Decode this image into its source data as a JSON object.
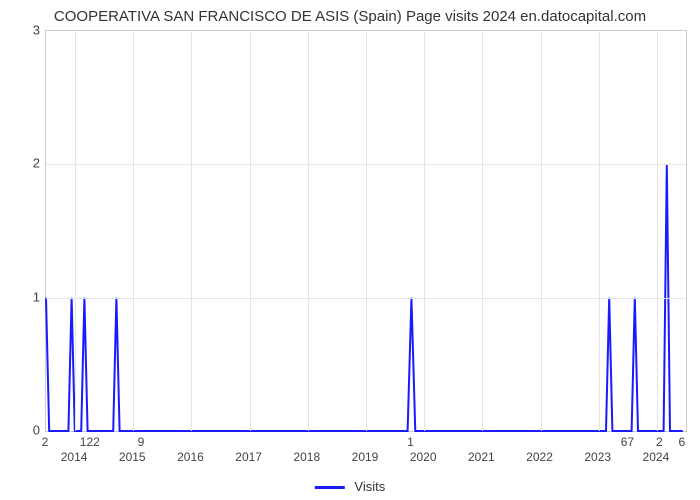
{
  "title": "COOPERATIVA SAN FRANCISCO DE ASIS (Spain) Page visits 2024 en.datocapital.com",
  "chart": {
    "type": "line",
    "background_color": "#ffffff",
    "grid_color": "#e6e6e6",
    "border_color": "#cccccc",
    "series_color": "#1a1aff",
    "line_width": 2,
    "fill_opacity": 0.0,
    "ylabel": "",
    "ylim": [
      0,
      3
    ],
    "ytick_step": 1,
    "yticks": [
      0,
      1,
      2,
      3
    ],
    "x_years": [
      "2014",
      "2015",
      "2016",
      "2017",
      "2018",
      "2019",
      "2020",
      "2021",
      "2022",
      "2023",
      "2024"
    ],
    "value_labels": [
      {
        "x": 0.0,
        "text": "2"
      },
      {
        "x": 7.0,
        "text": "122"
      },
      {
        "x": 15.0,
        "text": "9"
      },
      {
        "x": 57.1,
        "text": "1"
      },
      {
        "x": 91.0,
        "text": "67"
      },
      {
        "x": 96.0,
        "text": "2"
      },
      {
        "x": 99.5,
        "text": "6"
      }
    ],
    "points": [
      {
        "x": 0.0,
        "y": 1.0
      },
      {
        "x": 0.5,
        "y": 0.0
      },
      {
        "x": 3.5,
        "y": 0.0
      },
      {
        "x": 4.0,
        "y": 1.0
      },
      {
        "x": 4.5,
        "y": 0.0
      },
      {
        "x": 5.5,
        "y": 0.0
      },
      {
        "x": 6.0,
        "y": 1.0
      },
      {
        "x": 6.5,
        "y": 0.0
      },
      {
        "x": 10.5,
        "y": 0.0
      },
      {
        "x": 11.0,
        "y": 1.0
      },
      {
        "x": 11.5,
        "y": 0.0
      },
      {
        "x": 56.5,
        "y": 0.0
      },
      {
        "x": 57.1,
        "y": 1.0
      },
      {
        "x": 57.7,
        "y": 0.0
      },
      {
        "x": 87.5,
        "y": 0.0
      },
      {
        "x": 88.0,
        "y": 1.0
      },
      {
        "x": 88.5,
        "y": 0.0
      },
      {
        "x": 91.5,
        "y": 0.0
      },
      {
        "x": 92.0,
        "y": 1.0
      },
      {
        "x": 92.5,
        "y": 0.0
      },
      {
        "x": 96.5,
        "y": 0.0
      },
      {
        "x": 97.0,
        "y": 2.0
      },
      {
        "x": 97.5,
        "y": 0.0
      },
      {
        "x": 99.5,
        "y": 0.0
      }
    ],
    "legend_label": "Visits"
  }
}
